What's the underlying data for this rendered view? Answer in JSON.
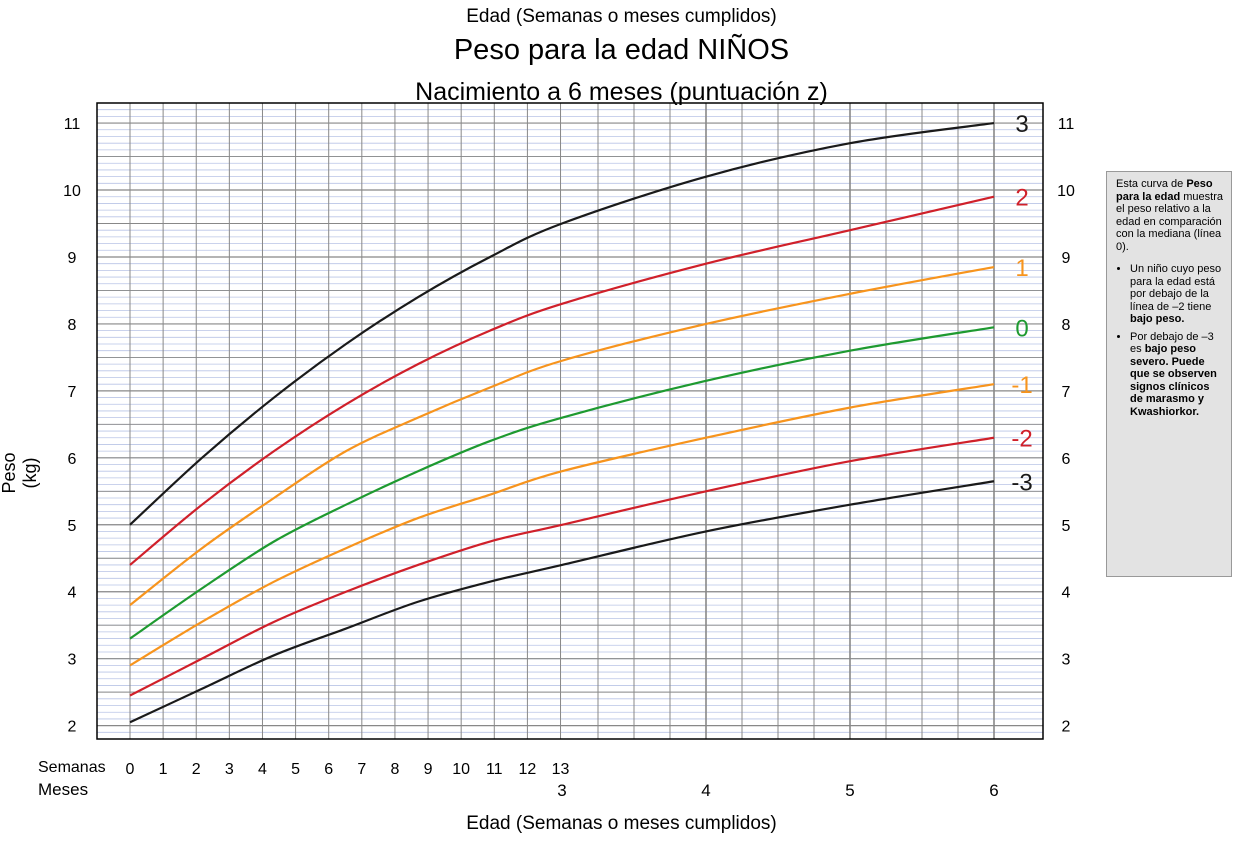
{
  "header": {
    "top_caption": "Edad (Semanas o meses cumplidos)",
    "title": "Peso para la edad NIÑOS",
    "subtitle": "Nacimiento a 6 meses (puntuación z)"
  },
  "axes": {
    "ylabel": "Peso (kg)",
    "xlabel": "Edad (Semanas o meses cumplidos)",
    "weeks_label": "Semanas",
    "months_label": "Meses",
    "week_ticks": [
      "0",
      "1",
      "2",
      "3",
      "4",
      "5",
      "6",
      "7",
      "8",
      "9",
      "10",
      "11",
      "12",
      "13"
    ],
    "month_ticks": [
      "3",
      "4",
      "5",
      "6"
    ],
    "y_ticks": [
      "2",
      "3",
      "4",
      "5",
      "6",
      "7",
      "8",
      "9",
      "10",
      "11"
    ]
  },
  "info_box": {
    "intro_bold1": "Peso para la edad",
    "intro_pre": "Esta curva de",
    "intro_post": "muestra el peso relativo a la edad en comparación con la mediana (línea 0).",
    "bullet1_pre": "Un niño cuyo peso para la edad está por debajo de la línea de –2 tiene",
    "bullet1_bold": "bajo peso.",
    "bullet2_pre": "Por debajo de –3 es",
    "bullet2_bold": "bajo peso severo. Puede que se observen signos clínicos de marasmo y Kwashiorkor."
  },
  "colors": {
    "plus3": "#1a1a1a",
    "plus2": "#d0202a",
    "plus1": "#f7941d",
    "zero": "#1e9a30",
    "minus1": "#f7941d",
    "minus2": "#d0202a",
    "minus3": "#1a1a1a",
    "grid_major": "#888888",
    "grid_minor": "#b9c4e6"
  },
  "chart_data": {
    "type": "line",
    "x_unit": "months",
    "xlim": [
      0,
      6
    ],
    "ylim": [
      1.8,
      11.3
    ],
    "x": [
      0,
      0.5,
      1,
      1.5,
      2,
      2.5,
      3,
      4,
      5,
      6
    ],
    "series": [
      {
        "name": "3",
        "color_key": "plus3",
        "values": [
          5.0,
          6.0,
          6.9,
          7.7,
          8.4,
          9.0,
          9.5,
          10.2,
          10.7,
          11.0
        ]
      },
      {
        "name": "2",
        "color_key": "plus2",
        "values": [
          4.4,
          5.3,
          6.1,
          6.8,
          7.4,
          7.9,
          8.3,
          8.9,
          9.4,
          9.9
        ]
      },
      {
        "name": "1",
        "color_key": "plus1",
        "values": [
          3.8,
          4.65,
          5.4,
          6.1,
          6.6,
          7.05,
          7.45,
          8.0,
          8.45,
          8.85
        ]
      },
      {
        "name": "0",
        "color_key": "zero",
        "values": [
          3.3,
          4.05,
          4.75,
          5.3,
          5.8,
          6.25,
          6.6,
          7.15,
          7.6,
          7.95
        ]
      },
      {
        "name": "-1",
        "color_key": "minus1",
        "values": [
          2.9,
          3.55,
          4.15,
          4.65,
          5.1,
          5.45,
          5.8,
          6.3,
          6.75,
          7.1
        ]
      },
      {
        "name": "-2",
        "color_key": "minus2",
        "values": [
          2.45,
          3.0,
          3.55,
          4.0,
          4.4,
          4.75,
          5.0,
          5.5,
          5.95,
          6.3
        ]
      },
      {
        "name": "-3",
        "color_key": "minus3",
        "values": [
          2.05,
          2.55,
          3.05,
          3.45,
          3.85,
          4.15,
          4.4,
          4.9,
          5.3,
          5.65
        ]
      }
    ],
    "grid": true
  }
}
